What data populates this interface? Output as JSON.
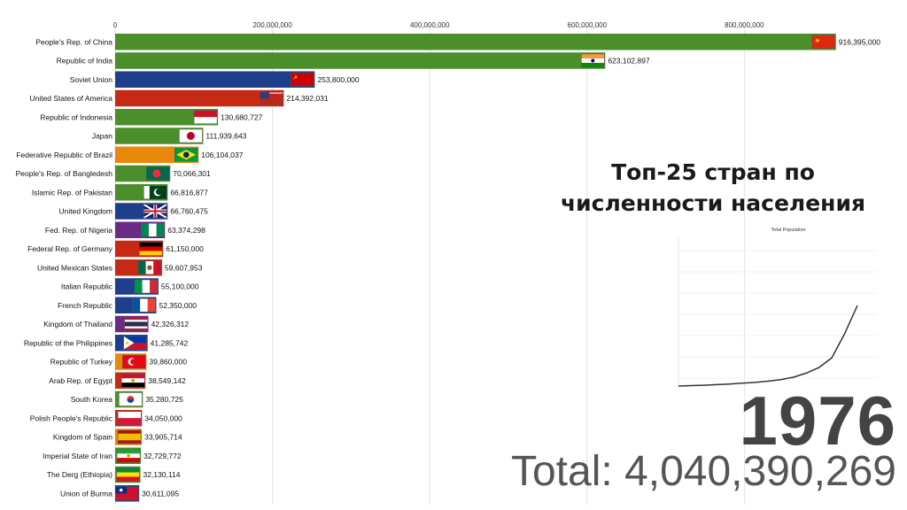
{
  "title_line1": "Топ-25 стран по",
  "title_line2": "численности населения",
  "year": "1976",
  "total_text": "Total: 4,040,390,269",
  "colors": {
    "green": "#4a8f2b",
    "blue": "#1f3e8c",
    "red": "#c62a14",
    "orange": "#e8890c",
    "purple": "#6a2a85"
  },
  "chart_data": [
    {
      "type": "bar",
      "orientation": "horizontal",
      "xlim": [
        0,
        1000000000
      ],
      "x_ticks": [
        "0",
        "200,000,000",
        "400,000,000",
        "600,000,000",
        "800,000,000"
      ],
      "x_tick_values": [
        0,
        200000000,
        400000000,
        600000000,
        800000000
      ],
      "categories": [
        "People's Rep. of China",
        "Republic of India",
        "Soviet Union",
        "United States of America",
        "Republic of Indonesia",
        "Japan",
        "Federative Republic of Brazil",
        "People's Rep. of Bangledesh",
        "Islamic Rep. of Pakistan",
        "United Kingdom",
        "Fed. Rep. of Nigeria",
        "Federal Rep. of Germany",
        "United Mexican States",
        "Italian Republic",
        "French Republic",
        "Kingdom of Thailand",
        "Republic of the Philippines",
        "Republic of Turkey",
        "Arab Rep. of Egypt",
        "South Korea",
        "Polish People's Republic",
        "Kingdom of Spain",
        "Imperial State of Iran",
        "The Derg (Ethiopia)",
        "Union of Burma"
      ],
      "values": [
        916395000,
        623102897,
        253800000,
        214392031,
        130680727,
        111939643,
        106104037,
        70066301,
        66816877,
        66760475,
        63374298,
        61150000,
        59607953,
        55100000,
        52350000,
        42326312,
        41285742,
        39860000,
        38549142,
        35280725,
        34050000,
        33905714,
        32729772,
        32130114,
        30611095
      ],
      "value_labels": [
        "916,395,000",
        "623,102,897",
        "253,800,000",
        "214,392,031",
        "130,680,727",
        "111,939,643",
        "106,104,037",
        "70,066,301",
        "66,816,877",
        "66,760,475",
        "63,374,298",
        "61,150,000",
        "59,607,953",
        "55,100,000",
        "52,350,000",
        "42,326,312",
        "41,285,742",
        "39,860,000",
        "38,549,142",
        "35,280,725",
        "34,050,000",
        "33,905,714",
        "32,729,772",
        "32,130,114",
        "30,611,095"
      ],
      "bar_colors": [
        "green",
        "green",
        "blue",
        "red",
        "green",
        "green",
        "orange",
        "green",
        "green",
        "blue",
        "purple",
        "red",
        "red",
        "blue",
        "blue",
        "purple",
        "blue",
        "orange",
        "red",
        "green",
        "red",
        "orange",
        "green",
        "green",
        "blue"
      ],
      "flags": [
        "china",
        "india",
        "ussr",
        "usa",
        "indonesia",
        "japan",
        "brazil",
        "bangladesh",
        "pakistan",
        "uk",
        "nigeria",
        "germany",
        "mexico",
        "italy",
        "france",
        "thailand",
        "philippines",
        "turkey",
        "egypt",
        "south-korea",
        "poland",
        "spain",
        "iran",
        "ethiopia",
        "burma"
      ],
      "grid": true
    },
    {
      "type": "line",
      "title": "Total Population",
      "series": [
        {
          "values": [
            1.0,
            1.01,
            1.02,
            1.035,
            1.05,
            1.07,
            1.09,
            1.12,
            1.16,
            1.22,
            1.32,
            1.46,
            1.7,
            2.3,
            3.0
          ]
        }
      ],
      "grid": true
    }
  ]
}
